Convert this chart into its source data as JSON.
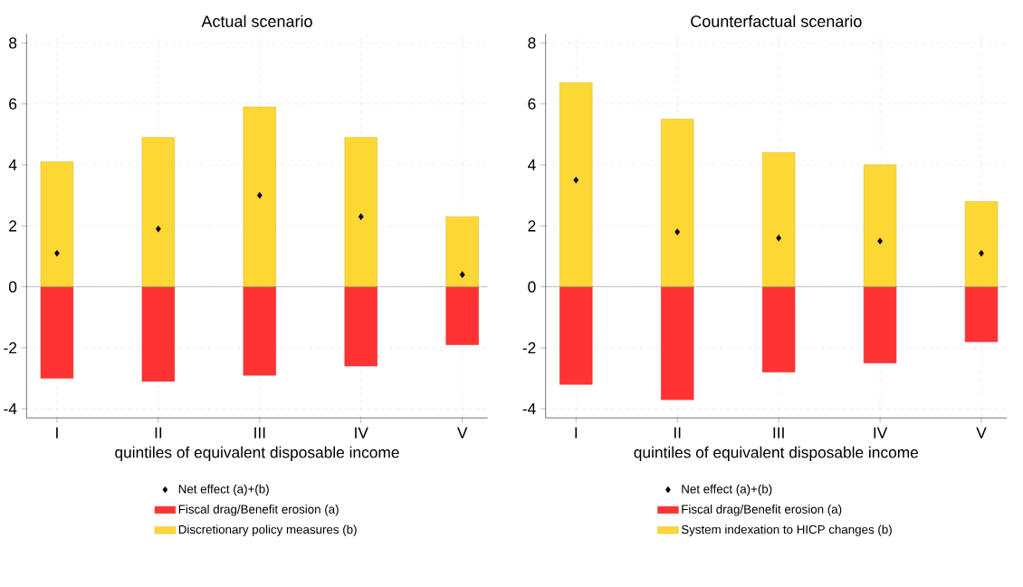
{
  "chart_data": [
    {
      "type": "bar",
      "title": "Actual scenario",
      "xlabel": "quintiles of equivalent disposable income",
      "categories": [
        "I",
        "II",
        "III",
        "IV",
        "V"
      ],
      "series": [
        {
          "name": "Net effect (a)+(b)",
          "type": "scatter",
          "marker": "diamond",
          "color": "#000000",
          "x": [
            "I",
            "II",
            "III",
            "IV",
            "V"
          ],
          "values": [
            1.1,
            1.9,
            3.0,
            2.3,
            0.4
          ]
        },
        {
          "name": "Fiscal drag/Benefit erosion (a)",
          "color": "#ff3333",
          "values": [
            -3.0,
            -3.1,
            -2.9,
            -2.6,
            -1.9
          ]
        },
        {
          "name": "Discretionary policy measures (b)",
          "color": "#fdd835",
          "values": [
            4.1,
            4.9,
            5.9,
            4.9,
            2.3
          ]
        }
      ],
      "ylim": [
        -4.3,
        8.3
      ],
      "yticks": [
        -4,
        -2,
        0,
        2,
        4,
        6,
        8
      ],
      "grid": true,
      "legend": "bottom",
      "stacked": true,
      "ref_lines": [
        {
          "axis": "y",
          "value": 0,
          "color": "#808080"
        }
      ]
    },
    {
      "type": "bar",
      "title": "Counterfactual scenario",
      "xlabel": "quintiles of equivalent disposable income",
      "categories": [
        "I",
        "II",
        "III",
        "IV",
        "V"
      ],
      "series": [
        {
          "name": "Net effect (a)+(b)",
          "type": "scatter",
          "marker": "diamond",
          "color": "#000000",
          "x": [
            "I",
            "II",
            "III",
            "IV",
            "V"
          ],
          "values": [
            3.5,
            1.8,
            1.6,
            1.5,
            1.1
          ]
        },
        {
          "name": "Fiscal drag/Benefit erosion (a)",
          "color": "#ff3333",
          "values": [
            -3.2,
            -3.7,
            -2.8,
            -2.5,
            -1.8
          ]
        },
        {
          "name": "System indexation to HICP changes (b)",
          "color": "#fdd835",
          "values": [
            6.7,
            5.5,
            4.4,
            4.0,
            2.8
          ]
        }
      ],
      "ylim": [
        -4.3,
        8.3
      ],
      "yticks": [
        -4,
        -2,
        0,
        2,
        4,
        6,
        8
      ],
      "grid": true,
      "legend": "bottom",
      "stacked": true,
      "ref_lines": [
        {
          "axis": "y",
          "value": 0,
          "color": "#808080"
        }
      ]
    }
  ]
}
